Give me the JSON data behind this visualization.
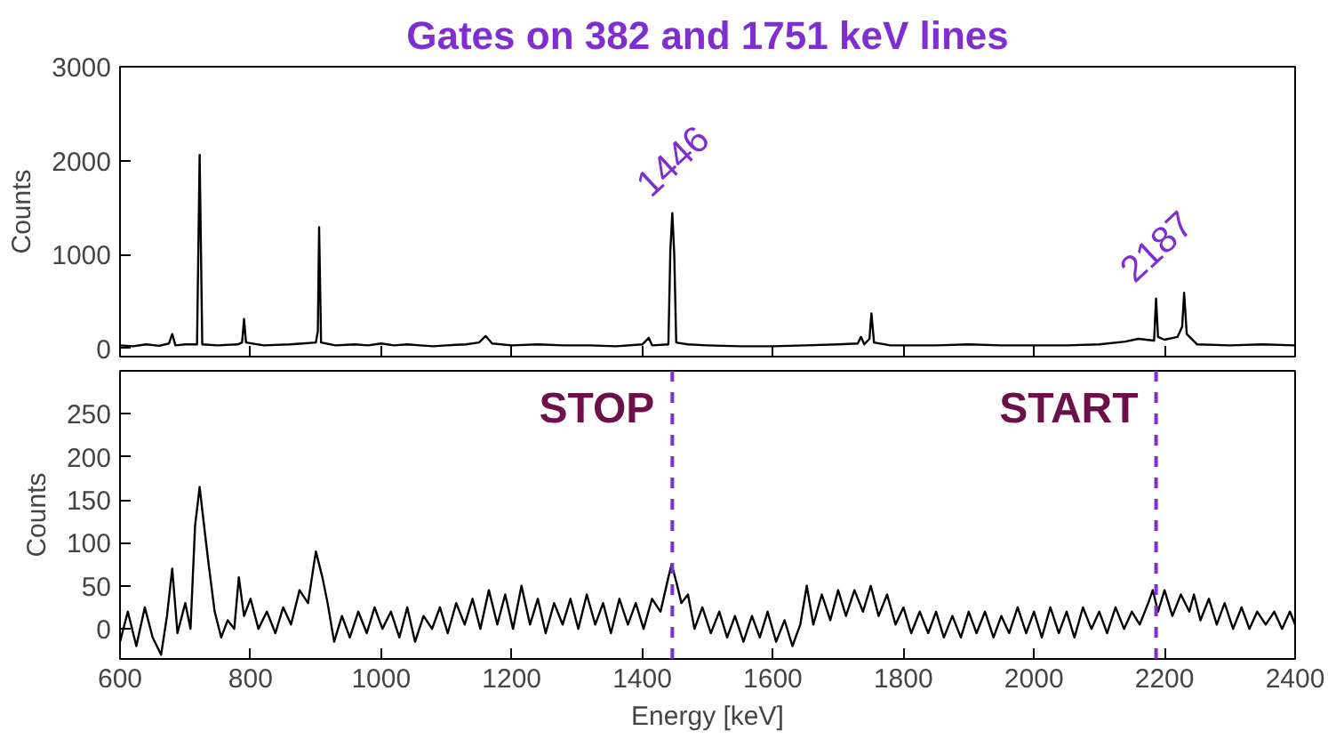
{
  "chart_data": [
    {
      "type": "line",
      "title": "Gates on 382 and 1751 keV lines",
      "ylabel": "Counts",
      "xlim": [
        600,
        2400
      ],
      "ylim": [
        -90,
        3000
      ],
      "xticks": [
        600,
        800,
        1000,
        1200,
        1400,
        1600,
        1800,
        2000,
        2200,
        2400
      ],
      "yticks": [
        0,
        1000,
        2000,
        3000
      ],
      "tick_labels": "y",
      "grid": false,
      "marker": "none",
      "line_style": "solid",
      "annotations": [
        {
          "text": "1446",
          "x": 1446,
          "y": 1440
        },
        {
          "text": "2187",
          "x": 2187,
          "y": 530
        }
      ],
      "series": [
        {
          "color": "#000000",
          "x": [
            600,
            620,
            640,
            660,
            675,
            680,
            685,
            700,
            718,
            722,
            726,
            750,
            780,
            787,
            790,
            793,
            820,
            860,
            880,
            900,
            903,
            905,
            908,
            930,
            960,
            980,
            1000,
            1020,
            1040,
            1060,
            1080,
            1100,
            1130,
            1150,
            1160,
            1170,
            1200,
            1240,
            1280,
            1320,
            1360,
            1400,
            1410,
            1415,
            1440,
            1443,
            1446,
            1449,
            1452,
            1470,
            1500,
            1550,
            1600,
            1650,
            1700,
            1730,
            1735,
            1740,
            1748,
            1751,
            1755,
            1780,
            1850,
            1900,
            1950,
            2000,
            2050,
            2100,
            2140,
            2160,
            2184,
            2187,
            2190,
            2200,
            2220,
            2227,
            2230,
            2234,
            2250,
            2300,
            2350,
            2400
          ],
          "values": [
            30,
            20,
            40,
            25,
            50,
            150,
            30,
            40,
            40,
            2060,
            40,
            30,
            40,
            60,
            310,
            60,
            30,
            40,
            50,
            60,
            180,
            1290,
            60,
            30,
            40,
            30,
            50,
            30,
            40,
            30,
            20,
            30,
            40,
            60,
            130,
            50,
            30,
            40,
            30,
            30,
            20,
            40,
            110,
            30,
            40,
            1040,
            1440,
            1000,
            60,
            40,
            30,
            20,
            20,
            30,
            40,
            50,
            120,
            40,
            100,
            370,
            60,
            30,
            30,
            40,
            30,
            30,
            30,
            40,
            70,
            100,
            80,
            530,
            120,
            90,
            120,
            230,
            590,
            150,
            40,
            30,
            40,
            30
          ]
        }
      ]
    },
    {
      "type": "line",
      "xlabel": "Energy [keV]",
      "ylabel": "Counts",
      "xlim": [
        600,
        2400
      ],
      "ylim": [
        -35,
        300
      ],
      "xticks": [
        600,
        800,
        1000,
        1200,
        1400,
        1600,
        1800,
        2000,
        2200,
        2400
      ],
      "yticks": [
        0,
        50,
        100,
        150,
        200,
        250
      ],
      "grid": false,
      "marker": "none",
      "line_style": "solid",
      "ref_lines": [
        {
          "axis": "x",
          "value": 1446,
          "label": "STOP",
          "color": "#7f2fd0",
          "line_style": "dashed"
        },
        {
          "axis": "x",
          "value": 2187,
          "label": "START",
          "color": "#7f2fd0",
          "line_style": "dashed"
        }
      ],
      "series": [
        {
          "color": "#000000",
          "x": [
            600,
            612,
            625,
            638,
            650,
            663,
            672,
            680,
            688,
            700,
            708,
            715,
            722,
            728,
            735,
            745,
            755,
            765,
            775,
            782,
            790,
            800,
            812,
            825,
            838,
            850,
            862,
            875,
            888,
            900,
            910,
            918,
            928,
            940,
            952,
            965,
            978,
            990,
            1002,
            1015,
            1028,
            1040,
            1052,
            1065,
            1078,
            1090,
            1102,
            1115,
            1128,
            1140,
            1152,
            1165,
            1178,
            1190,
            1202,
            1215,
            1228,
            1240,
            1252,
            1265,
            1278,
            1290,
            1302,
            1315,
            1328,
            1340,
            1352,
            1365,
            1378,
            1390,
            1402,
            1415,
            1428,
            1440,
            1445,
            1452,
            1460,
            1470,
            1480,
            1492,
            1505,
            1518,
            1530,
            1542,
            1555,
            1568,
            1580,
            1592,
            1605,
            1618,
            1630,
            1642,
            1652,
            1662,
            1675,
            1688,
            1700,
            1712,
            1725,
            1738,
            1750,
            1762,
            1775,
            1788,
            1800,
            1812,
            1825,
            1838,
            1850,
            1862,
            1875,
            1888,
            1900,
            1912,
            1925,
            1938,
            1950,
            1962,
            1975,
            1988,
            2000,
            2012,
            2025,
            2038,
            2050,
            2062,
            2075,
            2088,
            2100,
            2112,
            2125,
            2138,
            2150,
            2162,
            2175,
            2182,
            2190,
            2200,
            2212,
            2225,
            2238,
            2245,
            2255,
            2268,
            2280,
            2292,
            2305,
            2318,
            2330,
            2342,
            2355,
            2368,
            2380,
            2392,
            2400
          ],
          "values": [
            -15,
            20,
            -20,
            25,
            -10,
            -30,
            15,
            70,
            -5,
            30,
            0,
            120,
            165,
            125,
            80,
            20,
            -10,
            10,
            0,
            60,
            15,
            35,
            0,
            20,
            -5,
            25,
            5,
            45,
            30,
            90,
            60,
            30,
            -15,
            15,
            -10,
            20,
            -5,
            25,
            0,
            20,
            -10,
            25,
            -15,
            15,
            0,
            25,
            -5,
            30,
            5,
            35,
            0,
            45,
            5,
            40,
            0,
            50,
            5,
            35,
            -5,
            30,
            5,
            35,
            0,
            40,
            5,
            30,
            -5,
            35,
            5,
            30,
            0,
            35,
            20,
            60,
            75,
            55,
            30,
            40,
            0,
            25,
            -5,
            20,
            -10,
            15,
            -15,
            15,
            -10,
            20,
            -15,
            10,
            -20,
            5,
            50,
            5,
            40,
            10,
            45,
            15,
            45,
            20,
            50,
            15,
            40,
            5,
            25,
            -5,
            20,
            -5,
            20,
            -10,
            15,
            -10,
            20,
            -5,
            20,
            -10,
            15,
            -5,
            25,
            -5,
            20,
            -10,
            25,
            -5,
            20,
            -10,
            25,
            0,
            20,
            -5,
            25,
            0,
            20,
            5,
            30,
            45,
            20,
            45,
            15,
            40,
            20,
            40,
            10,
            35,
            5,
            30,
            0,
            25,
            0,
            20,
            5,
            20,
            0,
            20,
            5
          ]
        }
      ]
    }
  ]
}
